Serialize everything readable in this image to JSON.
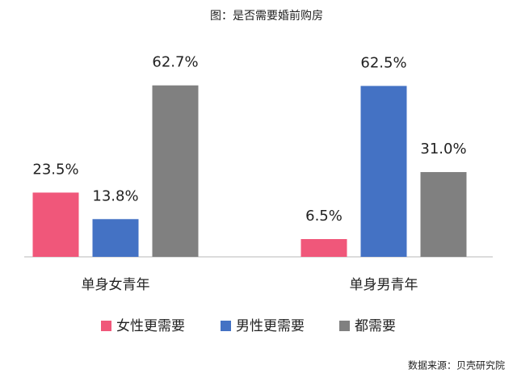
{
  "chart_data": {
    "type": "bar",
    "title": "图：是否需要婚前购房",
    "categories": [
      "单身女青年",
      "单身男青年"
    ],
    "series": [
      {
        "name": "女性更需要",
        "color": "#f0577a",
        "values": [
          23.5,
          6.5
        ],
        "value_labels": [
          "23.5%",
          "6.5%"
        ]
      },
      {
        "name": "男性更需要",
        "color": "#4472c4",
        "values": [
          13.8,
          62.5
        ],
        "value_labels": [
          "13.8%",
          "62.5%"
        ]
      },
      {
        "name": "都需要",
        "color": "#808080",
        "values": [
          62.7,
          31.0
        ],
        "value_labels": [
          "62.7%",
          "31.0%"
        ]
      }
    ],
    "ylim": [
      0,
      70
    ],
    "source": "数据来源：贝壳研究院"
  }
}
